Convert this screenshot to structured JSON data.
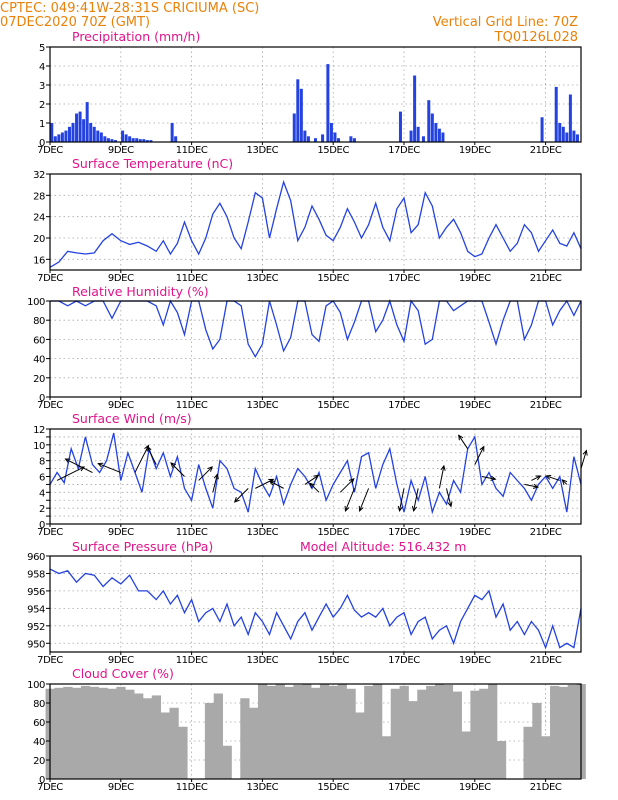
{
  "header": {
    "line1_left": "CPTEC:  049:41W-28:31S  CRICIUMA (SC)",
    "line2_left": "07DEC2020 70Z (GMT)",
    "line1_right": "Vertical Grid Line: 70Z",
    "line2_right": "TQ0126L028"
  },
  "colors": {
    "header": "#e8820a",
    "panel_title": "#e0148c",
    "series": "#2442e0",
    "cloud": "#a9a9a9",
    "wind_arrow": "#000000"
  },
  "x_tick_labels": [
    "7DEC",
    "9DEC",
    "11DEC",
    "13DEC",
    "15DEC",
    "17DEC",
    "19DEC",
    "21DEC"
  ],
  "chart_data": [
    {
      "type": "bar",
      "title": "Precipitation (mm/h)",
      "x": [
        7.05,
        7.15,
        7.25,
        7.35,
        7.45,
        7.55,
        7.65,
        7.75,
        7.85,
        7.95,
        8.05,
        8.15,
        8.25,
        8.35,
        8.45,
        8.55,
        8.65,
        8.75,
        8.85,
        9.05,
        9.15,
        9.25,
        9.35,
        9.45,
        9.55,
        9.65,
        9.75,
        9.85,
        10.45,
        10.55,
        13.9,
        14.0,
        14.1,
        14.2,
        14.3,
        14.5,
        14.7,
        14.85,
        14.95,
        15.05,
        15.15,
        15.5,
        15.6,
        16.9,
        17.2,
        17.3,
        17.4,
        17.55,
        17.7,
        17.8,
        17.9,
        18.0,
        18.1,
        20.9,
        21.3,
        21.4,
        21.5,
        21.6,
        21.7,
        21.8,
        21.9
      ],
      "values": [
        1.0,
        0.3,
        0.4,
        0.5,
        0.6,
        0.8,
        1.0,
        1.5,
        1.6,
        1.2,
        2.1,
        1.0,
        0.8,
        0.6,
        0.5,
        0.3,
        0.2,
        0.15,
        0.1,
        0.6,
        0.4,
        0.3,
        0.2,
        0.2,
        0.15,
        0.15,
        0.1,
        0.1,
        1.0,
        0.3,
        1.5,
        3.3,
        2.8,
        0.6,
        0.3,
        0.2,
        0.4,
        4.1,
        1.0,
        0.5,
        0.2,
        0.3,
        0.2,
        1.6,
        0.6,
        3.5,
        0.8,
        0.3,
        2.2,
        1.5,
        1.0,
        0.7,
        0.5,
        1.3,
        2.9,
        1.0,
        0.8,
        0.5,
        2.5,
        0.6,
        0.4
      ],
      "ylim": [
        0,
        5
      ],
      "yticks": [
        0,
        1,
        2,
        3,
        4,
        5
      ],
      "grid": true
    },
    {
      "type": "line",
      "title": "Surface Temperature (nC)",
      "x": [
        7.0,
        7.25,
        7.5,
        7.75,
        8.0,
        8.25,
        8.5,
        8.75,
        9.0,
        9.25,
        9.5,
        9.75,
        10.0,
        10.2,
        10.4,
        10.6,
        10.8,
        11.0,
        11.2,
        11.4,
        11.6,
        11.8,
        12.0,
        12.2,
        12.4,
        12.6,
        12.8,
        13.0,
        13.2,
        13.4,
        13.6,
        13.8,
        14.0,
        14.2,
        14.4,
        14.6,
        14.8,
        15.0,
        15.2,
        15.4,
        15.6,
        15.8,
        16.0,
        16.2,
        16.4,
        16.6,
        16.8,
        17.0,
        17.2,
        17.4,
        17.6,
        17.8,
        18.0,
        18.2,
        18.4,
        18.6,
        18.8,
        19.0,
        19.2,
        19.4,
        19.6,
        19.8,
        20.0,
        20.2,
        20.4,
        20.6,
        20.8,
        21.0,
        21.2,
        21.4,
        21.6,
        21.8,
        22.0
      ],
      "values": [
        14.5,
        15.5,
        17.5,
        17.2,
        17.0,
        17.2,
        19.5,
        20.8,
        19.5,
        18.8,
        19.2,
        18.5,
        17.5,
        19.5,
        17.0,
        19.0,
        23.0,
        19.5,
        17.0,
        20.0,
        24.5,
        26.5,
        24.0,
        20.0,
        18.0,
        23.0,
        28.5,
        27.5,
        20.0,
        25.5,
        30.5,
        27.0,
        19.5,
        22.0,
        26.0,
        23.5,
        20.5,
        19.5,
        22.0,
        25.5,
        23.0,
        20.0,
        22.5,
        26.5,
        22.0,
        19.5,
        25.5,
        27.5,
        21.0,
        22.5,
        28.5,
        26.0,
        20.0,
        22.0,
        23.5,
        21.0,
        17.5,
        16.5,
        17.0,
        20.0,
        22.5,
        20.0,
        17.5,
        19.0,
        22.5,
        21.0,
        17.5,
        19.5,
        21.5,
        19.0,
        18.5,
        21.0,
        18.0
      ],
      "ylim": [
        14,
        32
      ],
      "yticks": [
        16,
        20,
        24,
        28,
        32
      ],
      "grid": true
    },
    {
      "type": "line",
      "title": "Relative Humidity (%)",
      "x": [
        7.0,
        7.25,
        7.5,
        7.75,
        8.0,
        8.25,
        8.5,
        8.75,
        9.0,
        9.25,
        9.5,
        9.75,
        10.0,
        10.2,
        10.4,
        10.6,
        10.8,
        11.0,
        11.2,
        11.4,
        11.6,
        11.8,
        12.0,
        12.2,
        12.4,
        12.6,
        12.8,
        13.0,
        13.2,
        13.4,
        13.6,
        13.8,
        14.0,
        14.2,
        14.4,
        14.6,
        14.8,
        15.0,
        15.2,
        15.4,
        15.6,
        15.8,
        16.0,
        16.2,
        16.4,
        16.6,
        16.8,
        17.0,
        17.2,
        17.4,
        17.6,
        17.8,
        18.0,
        18.2,
        18.4,
        18.6,
        18.8,
        19.0,
        19.2,
        19.4,
        19.6,
        19.8,
        20.0,
        20.2,
        20.4,
        20.6,
        20.8,
        21.0,
        21.2,
        21.4,
        21.6,
        21.8,
        22.0
      ],
      "values": [
        100,
        100,
        95,
        100,
        95,
        100,
        100,
        82,
        100,
        100,
        100,
        100,
        95,
        75,
        100,
        88,
        65,
        100,
        100,
        70,
        50,
        60,
        100,
        100,
        95,
        55,
        42,
        55,
        100,
        75,
        48,
        62,
        100,
        100,
        65,
        58,
        95,
        100,
        88,
        60,
        78,
        100,
        100,
        68,
        80,
        100,
        75,
        58,
        100,
        90,
        55,
        60,
        100,
        100,
        90,
        95,
        100,
        100,
        100,
        78,
        55,
        80,
        100,
        100,
        60,
        75,
        100,
        100,
        75,
        90,
        100,
        85,
        100
      ],
      "ylim": [
        0,
        100
      ],
      "yticks": [
        0,
        20,
        40,
        60,
        80,
        100
      ],
      "grid": true
    },
    {
      "type": "line",
      "title": "Surface Wind (m/s)",
      "x": [
        7.0,
        7.2,
        7.4,
        7.6,
        7.8,
        8.0,
        8.2,
        8.4,
        8.6,
        8.8,
        9.0,
        9.2,
        9.4,
        9.6,
        9.8,
        10.0,
        10.2,
        10.4,
        10.6,
        10.8,
        11.0,
        11.2,
        11.4,
        11.6,
        11.8,
        12.0,
        12.2,
        12.4,
        12.6,
        12.8,
        13.0,
        13.2,
        13.4,
        13.6,
        13.8,
        14.0,
        14.2,
        14.4,
        14.6,
        14.8,
        15.0,
        15.2,
        15.4,
        15.6,
        15.8,
        16.0,
        16.2,
        16.4,
        16.6,
        16.8,
        17.0,
        17.2,
        17.4,
        17.6,
        17.8,
        18.0,
        18.2,
        18.4,
        18.6,
        18.8,
        19.0,
        19.2,
        19.4,
        19.6,
        19.8,
        20.0,
        20.2,
        20.4,
        20.6,
        20.8,
        21.0,
        21.2,
        21.4,
        21.6,
        21.8,
        22.0
      ],
      "values": [
        5.0,
        6.5,
        5.2,
        9.5,
        7.0,
        11.0,
        7.5,
        6.5,
        8.0,
        11.5,
        5.5,
        9.0,
        6.5,
        4.0,
        9.5,
        7.0,
        9.0,
        6.0,
        8.5,
        4.5,
        3.0,
        7.5,
        4.5,
        2.0,
        8.0,
        7.0,
        4.5,
        4.0,
        1.5,
        7.0,
        5.0,
        3.5,
        6.0,
        2.5,
        5.0,
        7.0,
        6.0,
        4.5,
        6.5,
        3.0,
        5.0,
        6.5,
        8.0,
        4.0,
        8.5,
        9.0,
        4.5,
        7.5,
        9.5,
        5.0,
        1.5,
        5.5,
        3.0,
        6.0,
        1.5,
        4.0,
        2.5,
        5.5,
        4.0,
        9.5,
        11.0,
        5.0,
        6.5,
        4.5,
        3.5,
        6.5,
        5.5,
        4.5,
        3.0,
        5.0,
        6.0,
        4.5,
        6.0,
        1.5,
        8.5,
        5.0
      ],
      "ylim": [
        0,
        12
      ],
      "yticks": [
        0,
        1,
        2,
        3,
        4,
        5,
        6,
        7,
        8,
        9,
        10,
        11,
        12
      ],
      "yticklabels": [
        0,
        "",
        2,
        "",
        4,
        "",
        6,
        "",
        8,
        "",
        10,
        "",
        12
      ],
      "grid": true,
      "wind_vectors": [
        {
          "x": 7.2,
          "y": 5.5,
          "u": 3.0,
          "v": 1.5
        },
        {
          "x": 8.2,
          "y": 6.5,
          "u": -3.0,
          "v": 1.5
        },
        {
          "x": 9.0,
          "y": 6.5,
          "u": -2.5,
          "v": 1.0
        },
        {
          "x": 9.4,
          "y": 6.5,
          "u": 1.5,
          "v": 3.0
        },
        {
          "x": 10.0,
          "y": 7.5,
          "u": -1.0,
          "v": 2.0
        },
        {
          "x": 10.8,
          "y": 6.0,
          "u": -1.5,
          "v": 1.5
        },
        {
          "x": 11.2,
          "y": 5.5,
          "u": 1.5,
          "v": 1.5
        },
        {
          "x": 11.6,
          "y": 4.0,
          "u": 0.5,
          "v": 2.0
        },
        {
          "x": 12.6,
          "y": 4.5,
          "u": -1.5,
          "v": -1.5
        },
        {
          "x": 12.8,
          "y": 4.5,
          "u": 2.0,
          "v": 1.0
        },
        {
          "x": 13.6,
          "y": 4.5,
          "u": -1.5,
          "v": 0.8
        },
        {
          "x": 14.2,
          "y": 5.0,
          "u": 1.5,
          "v": 1.0
        },
        {
          "x": 14.6,
          "y": 4.0,
          "u": -1.0,
          "v": 1.0
        },
        {
          "x": 15.2,
          "y": 4.0,
          "u": 1.5,
          "v": 1.5
        },
        {
          "x": 15.6,
          "y": 4.5,
          "u": -1.0,
          "v": -2.5
        },
        {
          "x": 16.0,
          "y": 4.5,
          "u": -1.0,
          "v": -2.5
        },
        {
          "x": 17.0,
          "y": 4.5,
          "u": -0.5,
          "v": -2.5
        },
        {
          "x": 17.4,
          "y": 4.5,
          "u": -0.5,
          "v": -2.5
        },
        {
          "x": 18.0,
          "y": 4.5,
          "u": 0.5,
          "v": 2.5
        },
        {
          "x": 18.2,
          "y": 4.5,
          "u": 0.5,
          "v": -2.0
        },
        {
          "x": 18.8,
          "y": 9.5,
          "u": -1.0,
          "v": 1.5
        },
        {
          "x": 19.0,
          "y": 7.5,
          "u": 1.0,
          "v": 2.0
        },
        {
          "x": 19.2,
          "y": 6.0,
          "u": 1.5,
          "v": -0.3
        },
        {
          "x": 20.4,
          "y": 5.0,
          "u": 1.5,
          "v": -0.3
        },
        {
          "x": 20.6,
          "y": 5.5,
          "u": 1.0,
          "v": 0.5
        },
        {
          "x": 21.4,
          "y": 5.5,
          "u": -1.5,
          "v": 0.5
        },
        {
          "x": 21.6,
          "y": 5.0,
          "u": -0.5,
          "v": 0.5
        },
        {
          "x": 22.0,
          "y": 7.0,
          "u": 0.6,
          "v": 2.0
        }
      ]
    },
    {
      "type": "line",
      "title": "Surface Pressure (hPa)",
      "annotation": "Model Altitude: 516.432 m",
      "x": [
        7.0,
        7.25,
        7.5,
        7.75,
        8.0,
        8.25,
        8.5,
        8.75,
        9.0,
        9.25,
        9.5,
        9.75,
        10.0,
        10.2,
        10.4,
        10.6,
        10.8,
        11.0,
        11.2,
        11.4,
        11.6,
        11.8,
        12.0,
        12.2,
        12.4,
        12.6,
        12.8,
        13.0,
        13.2,
        13.4,
        13.6,
        13.8,
        14.0,
        14.2,
        14.4,
        14.6,
        14.8,
        15.0,
        15.2,
        15.4,
        15.6,
        15.8,
        16.0,
        16.2,
        16.4,
        16.6,
        16.8,
        17.0,
        17.2,
        17.4,
        17.6,
        17.8,
        18.0,
        18.2,
        18.4,
        18.6,
        18.8,
        19.0,
        19.2,
        19.4,
        19.6,
        19.8,
        20.0,
        20.2,
        20.4,
        20.6,
        20.8,
        21.0,
        21.2,
        21.4,
        21.6,
        21.8,
        22.0
      ],
      "values": [
        958.5,
        958.0,
        958.3,
        957.0,
        958.0,
        957.8,
        956.5,
        957.5,
        956.8,
        957.8,
        956.0,
        956.0,
        955.0,
        956.0,
        954.5,
        955.5,
        953.5,
        955.0,
        952.5,
        953.5,
        954.0,
        952.5,
        954.5,
        952.0,
        953.0,
        951.0,
        953.5,
        952.5,
        951.0,
        953.5,
        952.0,
        950.5,
        952.5,
        953.5,
        951.5,
        953.0,
        954.5,
        953.0,
        954.0,
        955.5,
        953.8,
        953.0,
        953.5,
        953.0,
        954.0,
        952.0,
        953.0,
        953.5,
        951.0,
        952.5,
        953.0,
        950.5,
        951.5,
        952.0,
        950.0,
        952.5,
        954.0,
        955.5,
        955.0,
        956.0,
        953.0,
        954.5,
        951.5,
        952.5,
        951.0,
        952.5,
        951.5,
        949.5,
        952.0,
        949.5,
        950.0,
        949.5,
        954.0
      ],
      "ylim": [
        949,
        960
      ],
      "yticks": [
        950,
        952,
        954,
        956,
        958,
        960
      ],
      "grid": true
    },
    {
      "type": "area",
      "title": "Cloud Cover (%)",
      "x": [
        7.0,
        7.25,
        7.5,
        7.75,
        8.0,
        8.25,
        8.5,
        8.75,
        9.0,
        9.25,
        9.5,
        9.75,
        10.0,
        10.25,
        10.5,
        10.75,
        11.0,
        11.25,
        11.5,
        11.75,
        12.0,
        12.25,
        12.5,
        12.75,
        13.0,
        13.25,
        13.5,
        13.75,
        14.0,
        14.25,
        14.5,
        14.75,
        15.0,
        15.25,
        15.5,
        15.75,
        16.0,
        16.25,
        16.5,
        16.75,
        17.0,
        17.25,
        17.5,
        17.75,
        18.0,
        18.25,
        18.5,
        18.75,
        19.0,
        19.25,
        19.5,
        19.75,
        20.0,
        20.25,
        20.5,
        20.75,
        21.0,
        21.25,
        21.5,
        21.75,
        22.0
      ],
      "values": [
        95,
        96,
        97,
        96,
        98,
        97,
        96,
        95,
        97,
        94,
        90,
        85,
        88,
        70,
        75,
        55,
        0,
        0,
        80,
        90,
        35,
        0,
        85,
        75,
        100,
        98,
        100,
        97,
        99,
        100,
        96,
        100,
        98,
        100,
        95,
        70,
        98,
        100,
        45,
        95,
        98,
        82,
        94,
        98,
        100,
        99,
        92,
        50,
        93,
        95,
        100,
        40,
        0,
        0,
        55,
        80,
        45,
        98,
        97,
        99,
        100
      ],
      "ylim": [
        0,
        100
      ],
      "yticks": [
        0,
        20,
        40,
        60,
        80,
        100
      ],
      "grid": true
    }
  ]
}
